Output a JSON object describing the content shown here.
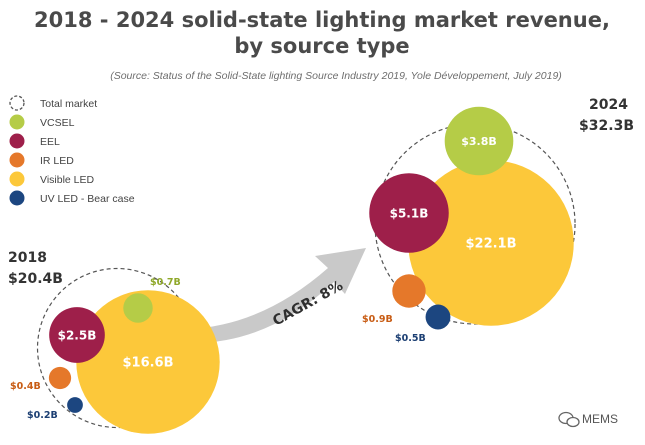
{
  "title_line1": "2018 - 2024 solid-state lighting market revenue,",
  "title_line2": "by source type",
  "source": "(Source: Status of the Solid-State lighting Source Industry 2019, Yole Développement, July 2019)",
  "watermark": "MEMS",
  "colors": {
    "vcsel": "#b5cc47",
    "eel": "#9e1f4a",
    "ir_led": "#e5782a",
    "visible_led": "#fcc83a",
    "uv_led": "#1c4680",
    "total": "#555555",
    "arrow": "#c9c9c9"
  },
  "chart_data": {
    "type": "bubble",
    "legend": [
      {
        "key": "total",
        "label": "Total market"
      },
      {
        "key": "vcsel",
        "label": "VCSEL"
      },
      {
        "key": "eel",
        "label": "EEL"
      },
      {
        "key": "ir_led",
        "label": "IR LED"
      },
      {
        "key": "visible_led",
        "label": "Visible LED"
      },
      {
        "key": "uv_led",
        "label": "UV LED - Bear case"
      }
    ],
    "cagr": "CAGR: 8%",
    "groups": [
      {
        "year": "2018",
        "total_label": "$20.4B",
        "total_value": 20.4,
        "segments": [
          {
            "key": "visible_led",
            "value": 16.6,
            "label": "$16.6B"
          },
          {
            "key": "eel",
            "value": 2.5,
            "label": "$2.5B"
          },
          {
            "key": "vcsel",
            "value": 0.7,
            "label": "$0.7B"
          },
          {
            "key": "ir_led",
            "value": 0.4,
            "label": "$0.4B"
          },
          {
            "key": "uv_led",
            "value": 0.2,
            "label": "$0.2B"
          }
        ]
      },
      {
        "year": "2024",
        "total_label": "$32.3B",
        "total_value": 32.3,
        "segments": [
          {
            "key": "visible_led",
            "value": 22.1,
            "label": "$22.1B"
          },
          {
            "key": "eel",
            "value": 5.1,
            "label": "$5.1B"
          },
          {
            "key": "vcsel",
            "value": 3.8,
            "label": "$3.8B"
          },
          {
            "key": "ir_led",
            "value": 0.9,
            "label": "$0.9B"
          },
          {
            "key": "uv_led",
            "value": 0.5,
            "label": "$0.5B"
          }
        ]
      }
    ]
  }
}
